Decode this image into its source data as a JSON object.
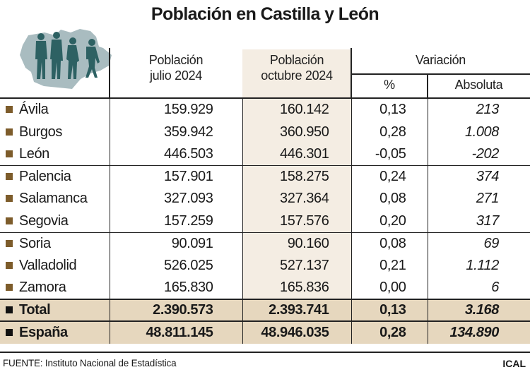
{
  "title": "Población en Castilla y León",
  "headers": {
    "july": [
      "Población",
      "julio 2024"
    ],
    "october": [
      "Población",
      "octubre 2024"
    ],
    "variation": "Variación",
    "pct": "%",
    "abs": "Absoluta"
  },
  "colors": {
    "highlight_column": "#f4ede3",
    "total_rows": "#e6d7be",
    "bullet": "#7d5c2b",
    "map": "#a9bcc0",
    "figures": "#2d6163"
  },
  "chart_data": {
    "type": "table",
    "title": "Población en Castilla y León",
    "columns": [
      "Población julio 2024",
      "Población octubre 2024",
      "Variación %",
      "Variación Absoluta"
    ],
    "rows": [
      {
        "name": "Ávila",
        "jul": "159.929",
        "oct": "160.142",
        "pct": "0,13",
        "abs": "213"
      },
      {
        "name": "Burgos",
        "jul": "359.942",
        "oct": "360.950",
        "pct": "0,28",
        "abs": "1.008"
      },
      {
        "name": "León",
        "jul": "446.503",
        "oct": "446.301",
        "pct": "-0,05",
        "abs": "-202"
      },
      {
        "name": "Palencia",
        "jul": "157.901",
        "oct": "158.275",
        "pct": "0,24",
        "abs": "374"
      },
      {
        "name": "Salamanca",
        "jul": "327.093",
        "oct": "327.364",
        "pct": "0,08",
        "abs": "271"
      },
      {
        "name": "Segovia",
        "jul": "157.259",
        "oct": "157.576",
        "pct": "0,20",
        "abs": "317"
      },
      {
        "name": "Soria",
        "jul": "90.091",
        "oct": "90.160",
        "pct": "0,08",
        "abs": "69"
      },
      {
        "name": "Valladolid",
        "jul": "526.025",
        "oct": "527.137",
        "pct": "0,21",
        "abs": "1.112"
      },
      {
        "name": "Zamora",
        "jul": "165.830",
        "oct": "165.836",
        "pct": "0,00",
        "abs": "6"
      }
    ],
    "totals": [
      {
        "name": "Total",
        "jul": "2.390.573",
        "oct": "2.393.741",
        "pct": "0,13",
        "abs": "3.168"
      },
      {
        "name": "España",
        "jul": "48.811.145",
        "oct": "48.946.035",
        "pct": "0,28",
        "abs": "134.890"
      }
    ]
  },
  "footer": {
    "source": "FUENTE: Instituto Nacional de Estadística",
    "brand": "ICAL"
  }
}
